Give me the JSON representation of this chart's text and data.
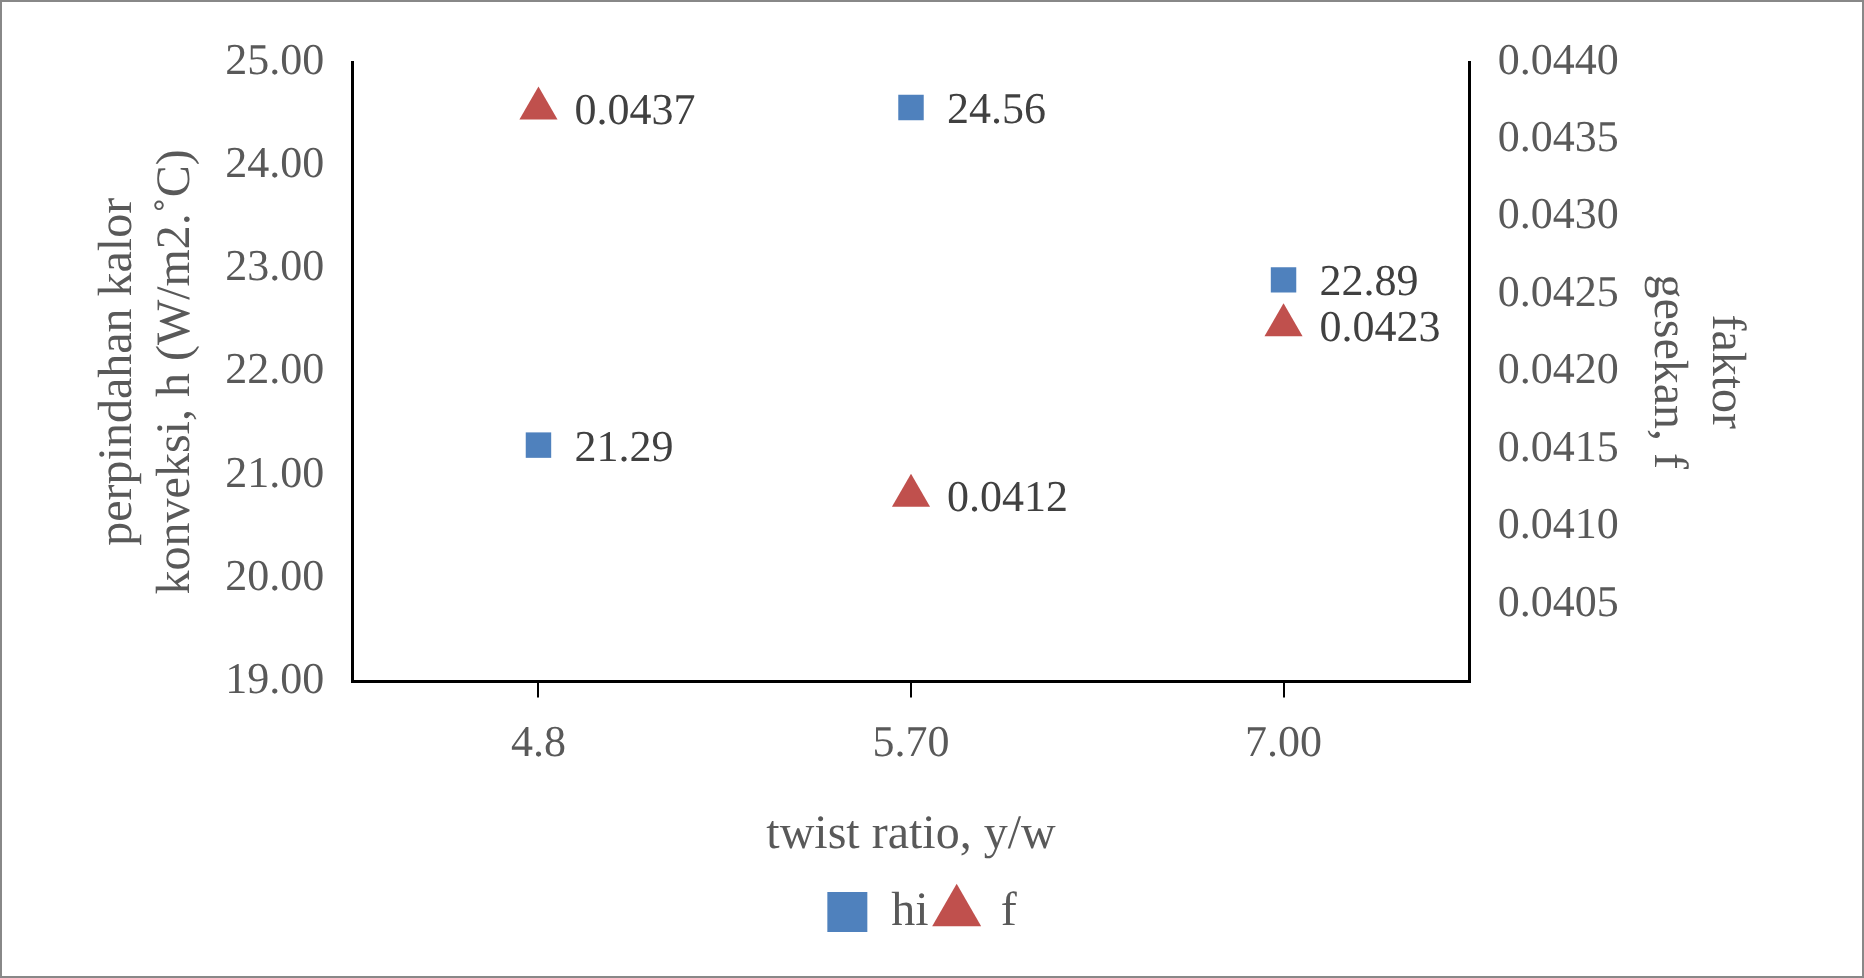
{
  "chart_data": {
    "type": "scatter",
    "xlabel": "twist ratio, y/w",
    "ylabel": "perpindahan kalor konveksi, h (W/m2.˚C)",
    "y2label": "faktor gesekan, f",
    "categories": [
      "4.8",
      "5.70",
      "7.00"
    ],
    "series": [
      {
        "name": "hi",
        "color": "#4f81bd",
        "marker": "square",
        "values": [
          21.29,
          24.56,
          22.89
        ]
      },
      {
        "name": "f",
        "color": "#c0504d",
        "marker": "triangle",
        "axis": "y2",
        "values": [
          0.0437,
          0.0412,
          0.0423
        ]
      }
    ],
    "ylim": [
      19,
      25
    ],
    "yticks": [
      {
        "value": 19,
        "label": "19.00"
      },
      {
        "value": 20,
        "label": "20.00"
      },
      {
        "value": 21,
        "label": "21.00"
      },
      {
        "value": 22,
        "label": "22.00"
      },
      {
        "value": 23,
        "label": "23.00"
      },
      {
        "value": 24,
        "label": "24.00"
      },
      {
        "value": 25,
        "label": "25.00"
      }
    ],
    "y2lim": [
      0.04,
      0.044
    ],
    "y2ticks": [
      {
        "value": 0.04,
        "label": null
      },
      {
        "value": 0.0405,
        "label": "0.0405"
      },
      {
        "value": 0.041,
        "label": "0.0410"
      },
      {
        "value": 0.0415,
        "label": "0.0415"
      },
      {
        "value": 0.042,
        "label": "0.0420"
      },
      {
        "value": 0.0425,
        "label": "0.0425"
      },
      {
        "value": 0.043,
        "label": "0.0430"
      },
      {
        "value": 0.0435,
        "label": "0.0435"
      },
      {
        "value": 0.044,
        "label": "0.0440"
      }
    ],
    "grid": false,
    "legend": "bottom",
    "data_labels": true
  }
}
